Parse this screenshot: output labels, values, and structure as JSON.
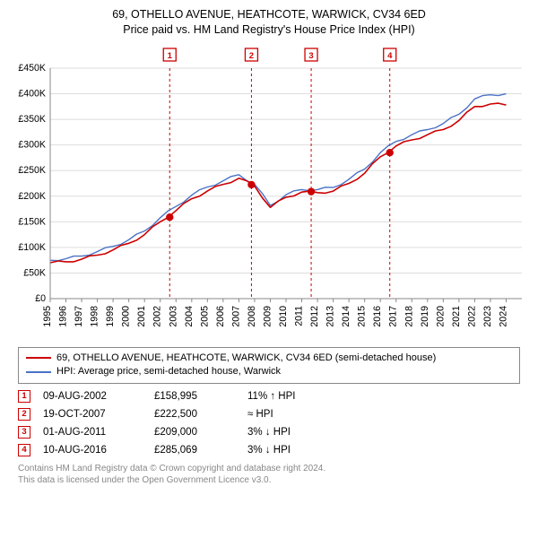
{
  "title_line1": "69, OTHELLO AVENUE, HEATHCOTE, WARWICK, CV34 6ED",
  "title_line2": "Price paid vs. HM Land Registry's House Price Index (HPI)",
  "chart": {
    "type": "line",
    "background_color": "#ffffff",
    "grid_color": "#dddddd",
    "axis_color": "#888888",
    "ylim": [
      0,
      450000
    ],
    "ytick_step": 50000,
    "ytick_labels": [
      "£0",
      "£50K",
      "£100K",
      "£150K",
      "£200K",
      "£250K",
      "£300K",
      "£350K",
      "£400K",
      "£450K"
    ],
    "xlim": [
      1995,
      2025
    ],
    "xticks": [
      1995,
      1996,
      1997,
      1998,
      1999,
      2000,
      2001,
      2002,
      2003,
      2004,
      2005,
      2006,
      2007,
      2008,
      2009,
      2010,
      2011,
      2012,
      2013,
      2014,
      2015,
      2016,
      2017,
      2018,
      2019,
      2020,
      2021,
      2022,
      2023,
      2024
    ],
    "series": [
      {
        "name": "69, OTHELLO AVENUE, HEATHCOTE, WARWICK, CV34 6ED (semi-detached house)",
        "color": "#cc0000",
        "width": 1.6,
        "data_yearly": {
          "1995": 70000,
          "1996": 72000,
          "1997": 77000,
          "1998": 85000,
          "1999": 95000,
          "2000": 108000,
          "2001": 125000,
          "2002": 150000,
          "2003": 172000,
          "2004": 195000,
          "2005": 210000,
          "2006": 223000,
          "2007": 235000,
          "2008": 220000,
          "2009": 178000,
          "2010": 198000,
          "2011": 208000,
          "2012": 207000,
          "2013": 210000,
          "2014": 225000,
          "2015": 245000,
          "2016": 277000,
          "2017": 298000,
          "2018": 310000,
          "2019": 320000,
          "2020": 330000,
          "2021": 348000,
          "2022": 375000,
          "2023": 380000,
          "2024": 378000
        }
      },
      {
        "name": "HPI: Average price, semi-detached house, Warwick",
        "color": "#4a72c6",
        "width": 1.4,
        "data_yearly": {
          "1995": 75000,
          "1996": 78000,
          "1997": 83000,
          "1998": 92000,
          "1999": 102000,
          "2000": 115000,
          "2001": 132000,
          "2002": 158000,
          "2003": 180000,
          "2004": 202000,
          "2005": 218000,
          "2006": 230000,
          "2007": 242000,
          "2008": 223000,
          "2009": 182000,
          "2010": 203000,
          "2011": 213000,
          "2012": 213000,
          "2013": 217000,
          "2014": 233000,
          "2015": 253000,
          "2016": 285000,
          "2017": 307000,
          "2018": 320000,
          "2019": 330000,
          "2020": 342000,
          "2021": 360000,
          "2022": 390000,
          "2023": 398000,
          "2024": 400000
        }
      }
    ],
    "event_markers": [
      {
        "n": "1",
        "year": 2002.6
      },
      {
        "n": "2",
        "year": 2007.8
      },
      {
        "n": "3",
        "year": 2011.6
      },
      {
        "n": "4",
        "year": 2016.6
      }
    ],
    "sale_points": [
      {
        "year": 2002.6,
        "value": 158995
      },
      {
        "year": 2007.8,
        "value": 222500
      },
      {
        "year": 2011.6,
        "value": 209000
      },
      {
        "year": 2016.6,
        "value": 285069
      }
    ],
    "marker_line_color": "#cc0000",
    "marker_line_dash": "3,3",
    "marker_box_border": "#cc0000",
    "marker_box_fill": "#ffffff",
    "sale_point_color": "#cc0000",
    "sale_point_radius": 4.2
  },
  "legend": {
    "items": [
      {
        "color": "#cc0000",
        "label": "69, OTHELLO AVENUE, HEATHCOTE, WARWICK, CV34 6ED (semi-detached house)"
      },
      {
        "color": "#4a72c6",
        "label": "HPI: Average price, semi-detached house, Warwick"
      }
    ]
  },
  "transactions": [
    {
      "n": "1",
      "date": "09-AUG-2002",
      "price": "£158,995",
      "vs": "11% ↑ HPI"
    },
    {
      "n": "2",
      "date": "19-OCT-2007",
      "price": "£222,500",
      "vs": "≈ HPI"
    },
    {
      "n": "3",
      "date": "01-AUG-2011",
      "price": "£209,000",
      "vs": "3% ↓ HPI"
    },
    {
      "n": "4",
      "date": "10-AUG-2016",
      "price": "£285,069",
      "vs": "3% ↓ HPI"
    }
  ],
  "footer_line1": "Contains HM Land Registry data © Crown copyright and database right 2024.",
  "footer_line2": "This data is licensed under the Open Government Licence v3.0."
}
